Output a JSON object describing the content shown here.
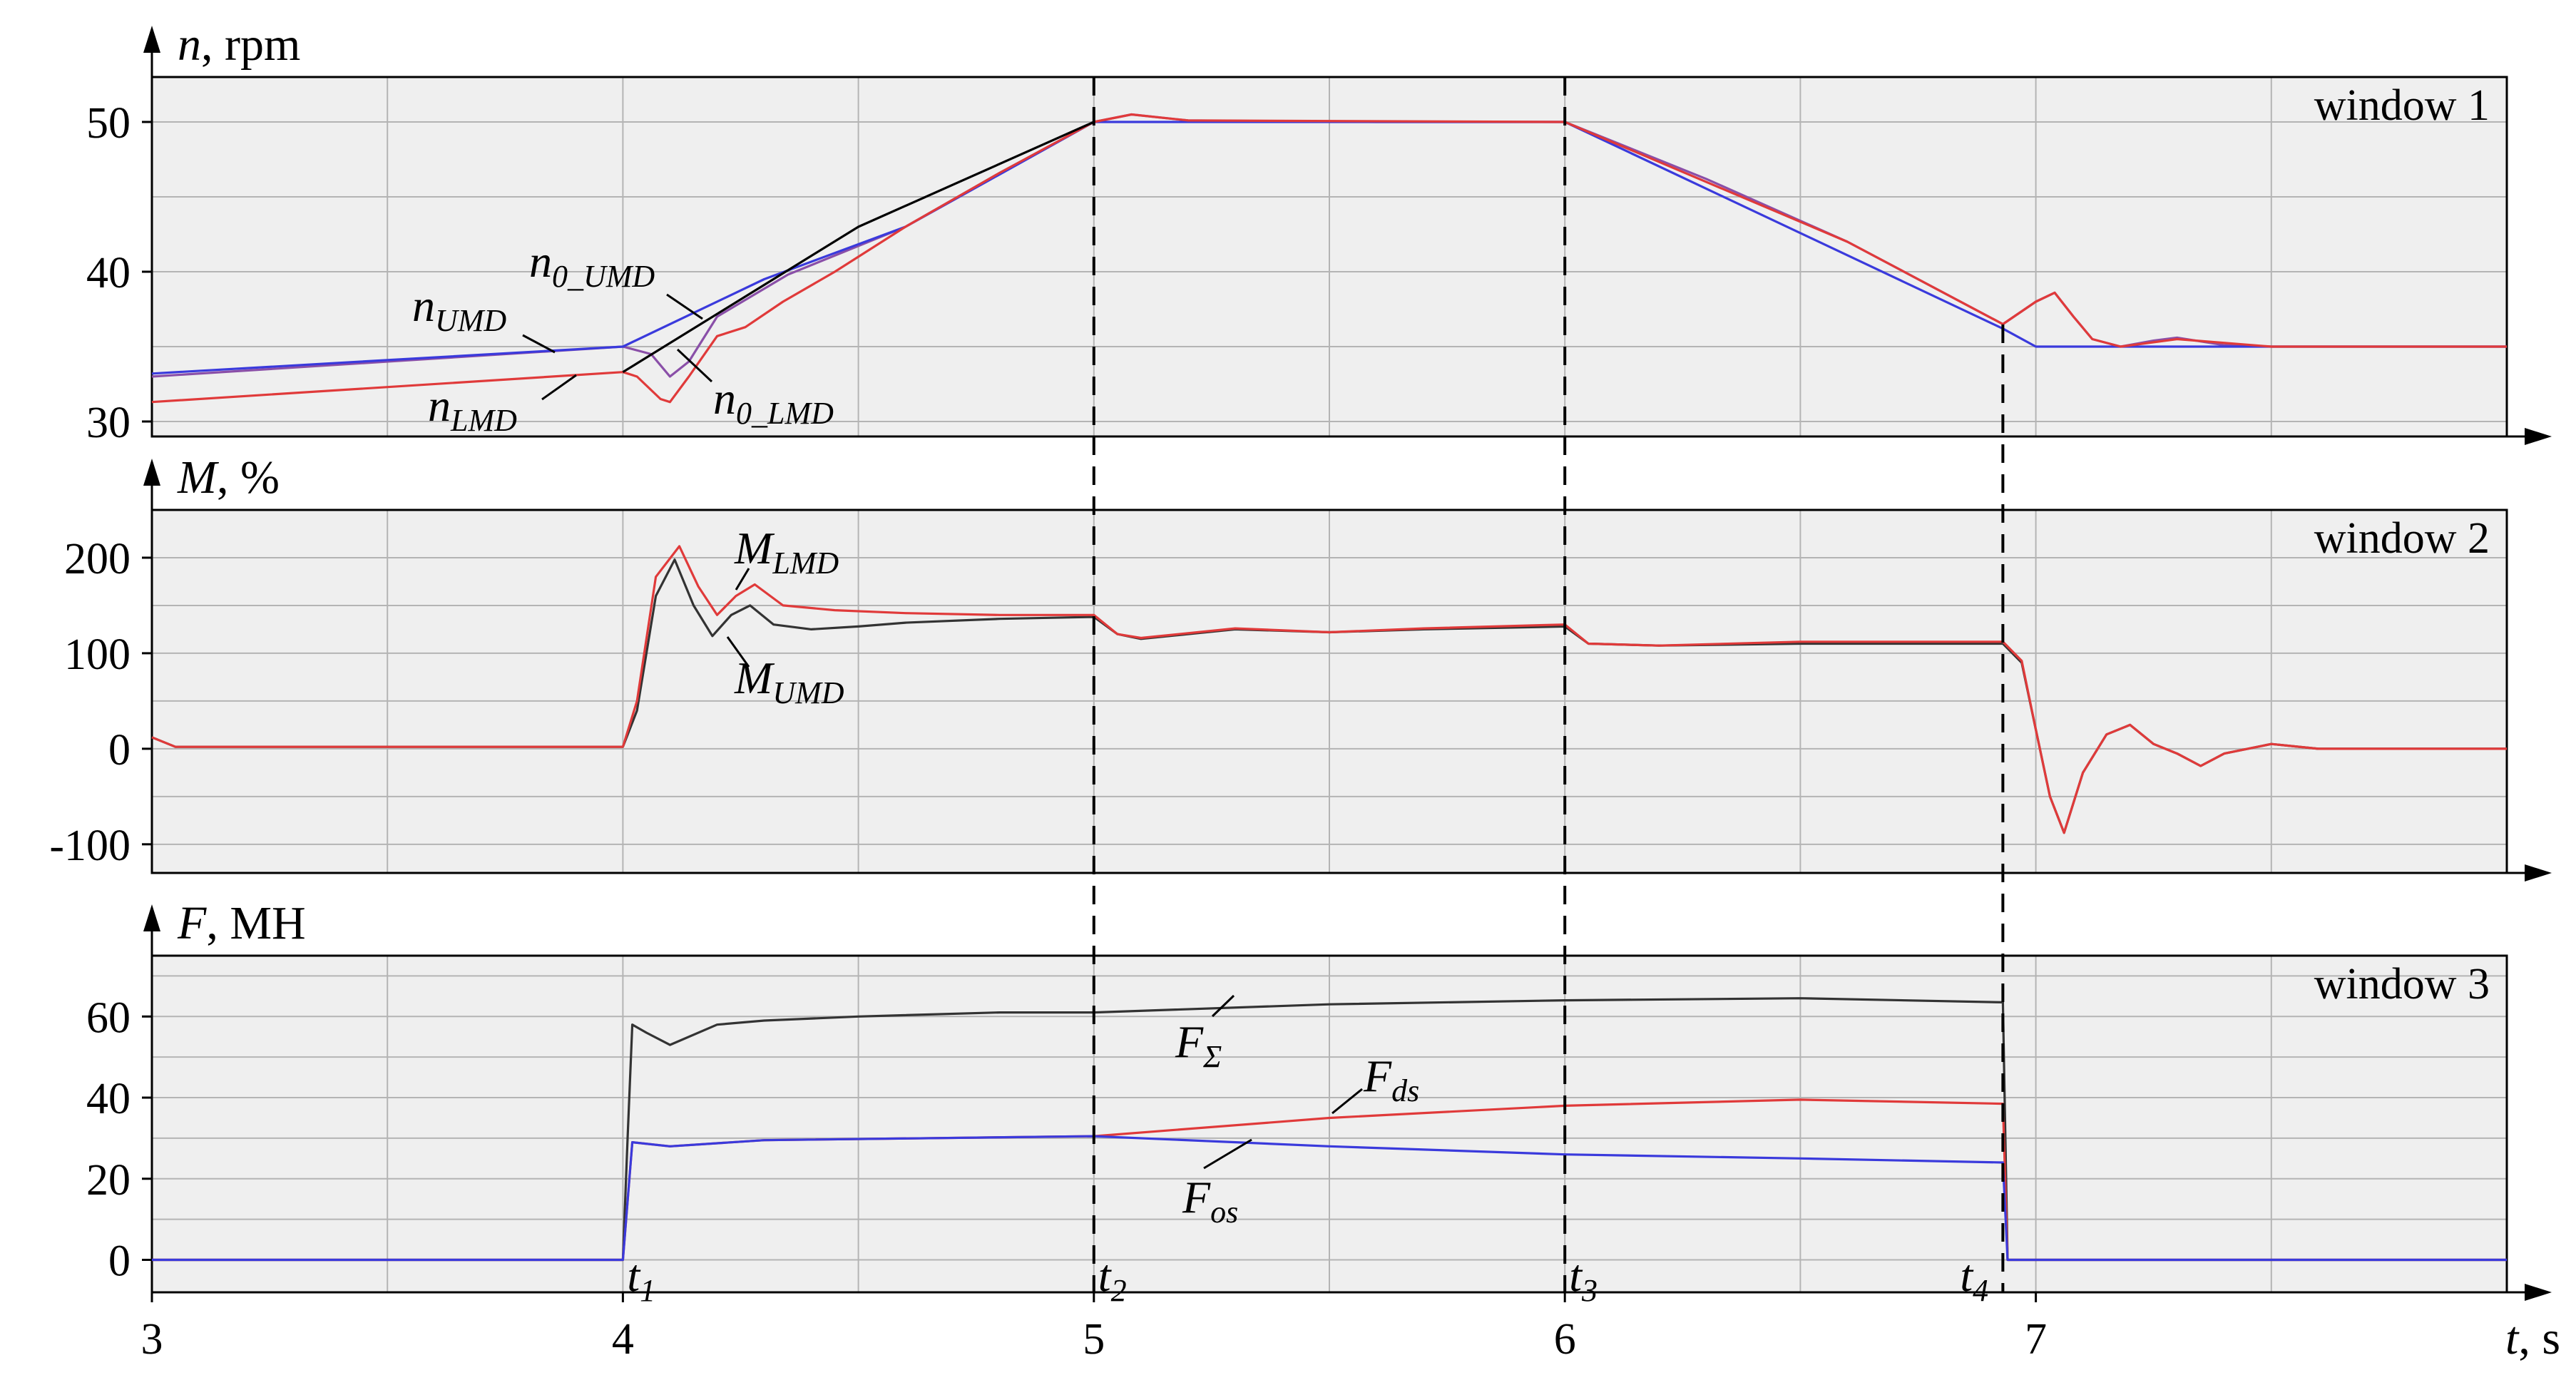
{
  "chart_data": {
    "type": "line",
    "x_axis": {
      "label_italic": "t",
      "label_rest": ", s",
      "range": [
        3,
        8
      ],
      "ticks": [
        3,
        4,
        5,
        6,
        7
      ],
      "tick_labels": [
        "3",
        "4",
        "5",
        "6",
        "7"
      ]
    },
    "markers": [
      {
        "base": "t",
        "sub": "1",
        "x": 4.0
      },
      {
        "base": "t",
        "sub": "2",
        "x": 5.0
      },
      {
        "base": "t",
        "sub": "3",
        "x": 6.0
      },
      {
        "base": "t",
        "sub": "4",
        "x": 6.93
      }
    ],
    "panels": [
      {
        "window_label": "window 1",
        "ylabel_italic": "n",
        "ylabel_rest": ", rpm",
        "ylim": [
          29,
          53
        ],
        "yticks": [
          30,
          40,
          50
        ],
        "ytick_labels": [
          "30",
          "40",
          "50"
        ],
        "series": [
          {
            "name_base": "n",
            "name_sub": "UMD",
            "color": "#8a4fa8",
            "points": [
              [
                3.0,
                33.0
              ],
              [
                4.0,
                35.0
              ],
              [
                4.06,
                34.5
              ],
              [
                4.1,
                33.0
              ],
              [
                4.14,
                34.0
              ],
              [
                4.2,
                37.0
              ],
              [
                4.35,
                39.8
              ],
              [
                4.6,
                43.0
              ],
              [
                4.8,
                46.6
              ],
              [
                5.0,
                50.0
              ],
              [
                5.08,
                50.5
              ],
              [
                5.2,
                50.1
              ],
              [
                5.6,
                50.0
              ],
              [
                6.0,
                50.0
              ],
              [
                6.3,
                46.2
              ],
              [
                6.6,
                42.0
              ],
              [
                6.93,
                36.5
              ],
              [
                7.0,
                38.0
              ],
              [
                7.04,
                38.6
              ],
              [
                7.08,
                37.0
              ],
              [
                7.12,
                35.5
              ],
              [
                7.18,
                35.0
              ],
              [
                7.25,
                35.4
              ],
              [
                7.3,
                35.6
              ],
              [
                7.4,
                35.1
              ],
              [
                7.5,
                35.0
              ],
              [
                8.0,
                35.0
              ]
            ]
          },
          {
            "name_base": "n",
            "name_sub": "0_UMD",
            "color": "#3a3adc",
            "points": [
              [
                3.0,
                33.2
              ],
              [
                4.0,
                35.0
              ],
              [
                4.3,
                39.5
              ],
              [
                4.6,
                43.0
              ],
              [
                5.0,
                50.0
              ],
              [
                6.0,
                50.0
              ],
              [
                6.93,
                36.2
              ],
              [
                7.0,
                35.0
              ],
              [
                8.0,
                35.0
              ]
            ]
          },
          {
            "name_base": "n",
            "name_sub": "LMD",
            "color": "#e03a3a",
            "points": [
              [
                3.0,
                31.3
              ],
              [
                4.0,
                33.3
              ],
              [
                4.03,
                33.0
              ],
              [
                4.08,
                31.5
              ],
              [
                4.1,
                31.3
              ],
              [
                4.14,
                33.0
              ],
              [
                4.2,
                35.7
              ],
              [
                4.26,
                36.3
              ],
              [
                4.34,
                38.0
              ],
              [
                4.45,
                40.0
              ],
              [
                4.6,
                43.0
              ],
              [
                4.8,
                46.6
              ],
              [
                5.0,
                50.0
              ],
              [
                5.08,
                50.5
              ],
              [
                5.2,
                50.1
              ],
              [
                6.0,
                50.0
              ],
              [
                6.6,
                42.0
              ],
              [
                6.93,
                36.5
              ],
              [
                7.0,
                38.0
              ],
              [
                7.04,
                38.6
              ],
              [
                7.08,
                37.0
              ],
              [
                7.12,
                35.5
              ],
              [
                7.18,
                35.0
              ],
              [
                7.3,
                35.5
              ],
              [
                7.5,
                35.0
              ],
              [
                8.0,
                35.0
              ]
            ]
          },
          {
            "name_base": "n",
            "name_sub": "0_LMD",
            "color": "#000000",
            "points": [
              [
                4.0,
                33.3
              ],
              [
                4.5,
                43.0
              ],
              [
                5.0,
                50.0
              ]
            ]
          }
        ],
        "annotations": [
          {
            "base": "n",
            "sub": "0_UMD"
          },
          {
            "base": "n",
            "sub": "UMD"
          },
          {
            "base": "n",
            "sub": "LMD"
          },
          {
            "base": "n",
            "sub": "0_LMD"
          }
        ]
      },
      {
        "window_label": "window 2",
        "ylabel_italic": "M",
        "ylabel_rest": ", %",
        "ylim": [
          -130,
          250
        ],
        "yticks": [
          -100,
          0,
          100,
          200
        ],
        "ytick_labels": [
          "-100",
          "0",
          "100",
          "200"
        ],
        "series": [
          {
            "name_base": "M",
            "name_sub": "UMD",
            "color": "#333333",
            "points": [
              [
                3.0,
                12
              ],
              [
                3.05,
                2
              ],
              [
                3.5,
                2
              ],
              [
                4.0,
                2
              ],
              [
                4.03,
                40
              ],
              [
                4.07,
                160
              ],
              [
                4.11,
                198
              ],
              [
                4.15,
                150
              ],
              [
                4.19,
                118
              ],
              [
                4.23,
                140
              ],
              [
                4.27,
                150
              ],
              [
                4.32,
                130
              ],
              [
                4.4,
                125
              ],
              [
                4.5,
                128
              ],
              [
                4.6,
                132
              ],
              [
                4.8,
                136
              ],
              [
                5.0,
                138
              ],
              [
                5.05,
                120
              ],
              [
                5.1,
                115
              ],
              [
                5.3,
                125
              ],
              [
                5.5,
                122
              ],
              [
                5.7,
                125
              ],
              [
                6.0,
                128
              ],
              [
                6.05,
                110
              ],
              [
                6.2,
                108
              ],
              [
                6.5,
                110
              ],
              [
                6.93,
                110
              ],
              [
                6.97,
                90
              ],
              [
                7.0,
                20
              ],
              [
                7.03,
                -50
              ],
              [
                7.06,
                -88
              ],
              [
                7.1,
                -25
              ],
              [
                7.15,
                15
              ],
              [
                7.2,
                25
              ],
              [
                7.25,
                5
              ],
              [
                7.3,
                -5
              ],
              [
                7.35,
                -18
              ],
              [
                7.4,
                -5
              ],
              [
                7.5,
                5
              ],
              [
                7.6,
                0
              ],
              [
                8.0,
                0
              ]
            ]
          },
          {
            "name_base": "M",
            "name_sub": "LMD",
            "color": "#e03a3a",
            "points": [
              [
                3.0,
                12
              ],
              [
                3.05,
                2
              ],
              [
                3.5,
                2
              ],
              [
                4.0,
                2
              ],
              [
                4.03,
                50
              ],
              [
                4.07,
                180
              ],
              [
                4.12,
                212
              ],
              [
                4.16,
                170
              ],
              [
                4.2,
                140
              ],
              [
                4.24,
                160
              ],
              [
                4.28,
                172
              ],
              [
                4.34,
                150
              ],
              [
                4.45,
                145
              ],
              [
                4.6,
                142
              ],
              [
                4.8,
                140
              ],
              [
                5.0,
                140
              ],
              [
                5.05,
                120
              ],
              [
                5.1,
                116
              ],
              [
                5.3,
                126
              ],
              [
                5.5,
                122
              ],
              [
                5.7,
                126
              ],
              [
                6.0,
                130
              ],
              [
                6.05,
                110
              ],
              [
                6.2,
                108
              ],
              [
                6.5,
                112
              ],
              [
                6.93,
                112
              ],
              [
                6.97,
                92
              ],
              [
                7.0,
                20
              ],
              [
                7.03,
                -50
              ],
              [
                7.06,
                -88
              ],
              [
                7.1,
                -25
              ],
              [
                7.15,
                15
              ],
              [
                7.2,
                25
              ],
              [
                7.25,
                5
              ],
              [
                7.3,
                -5
              ],
              [
                7.35,
                -18
              ],
              [
                7.4,
                -5
              ],
              [
                7.5,
                5
              ],
              [
                7.6,
                0
              ],
              [
                8.0,
                0
              ]
            ]
          }
        ],
        "annotations": [
          {
            "base": "M",
            "sub": "LMD"
          },
          {
            "base": "M",
            "sub": "UMD"
          }
        ]
      },
      {
        "window_label": "window 3",
        "ylabel_italic": "F",
        "ylabel_rest": ", MH",
        "ylim": [
          -8,
          75
        ],
        "yticks": [
          0,
          20,
          40,
          60
        ],
        "ytick_labels": [
          "0",
          "20",
          "40",
          "60"
        ],
        "series": [
          {
            "name_base": "F",
            "name_sub": "Σ",
            "color": "#333333",
            "points": [
              [
                3.0,
                0
              ],
              [
                4.0,
                0
              ],
              [
                4.01,
                30
              ],
              [
                4.02,
                58
              ],
              [
                4.05,
                56
              ],
              [
                4.1,
                53
              ],
              [
                4.2,
                58
              ],
              [
                4.3,
                59
              ],
              [
                4.5,
                60
              ],
              [
                4.8,
                61
              ],
              [
                5.0,
                61
              ],
              [
                5.5,
                63
              ],
              [
                6.0,
                64
              ],
              [
                6.5,
                64.5
              ],
              [
                6.93,
                63.5
              ],
              [
                6.94,
                0
              ],
              [
                8.0,
                0
              ]
            ]
          },
          {
            "name_base": "F",
            "name_sub": "ds",
            "color": "#e03a3a",
            "points": [
              [
                3.0,
                0
              ],
              [
                4.0,
                0
              ],
              [
                4.02,
                29
              ],
              [
                4.1,
                28
              ],
              [
                4.3,
                29.5
              ],
              [
                5.0,
                30.5
              ],
              [
                5.5,
                35
              ],
              [
                6.0,
                38
              ],
              [
                6.5,
                39.5
              ],
              [
                6.93,
                38.5
              ],
              [
                6.94,
                0
              ],
              [
                8.0,
                0
              ]
            ]
          },
          {
            "name_base": "F",
            "name_sub": "os",
            "color": "#3a3adc",
            "points": [
              [
                3.0,
                0
              ],
              [
                4.0,
                0
              ],
              [
                4.02,
                29
              ],
              [
                4.1,
                28
              ],
              [
                4.3,
                29.5
              ],
              [
                5.0,
                30.5
              ],
              [
                5.5,
                28
              ],
              [
                6.0,
                26
              ],
              [
                6.5,
                25
              ],
              [
                6.93,
                24
              ],
              [
                6.94,
                0
              ],
              [
                8.0,
                0
              ]
            ]
          }
        ],
        "annotations": [
          {
            "base": "F",
            "sub": "Σ"
          },
          {
            "base": "F",
            "sub": "ds"
          },
          {
            "base": "F",
            "sub": "os"
          }
        ]
      }
    ],
    "grid": true
  }
}
